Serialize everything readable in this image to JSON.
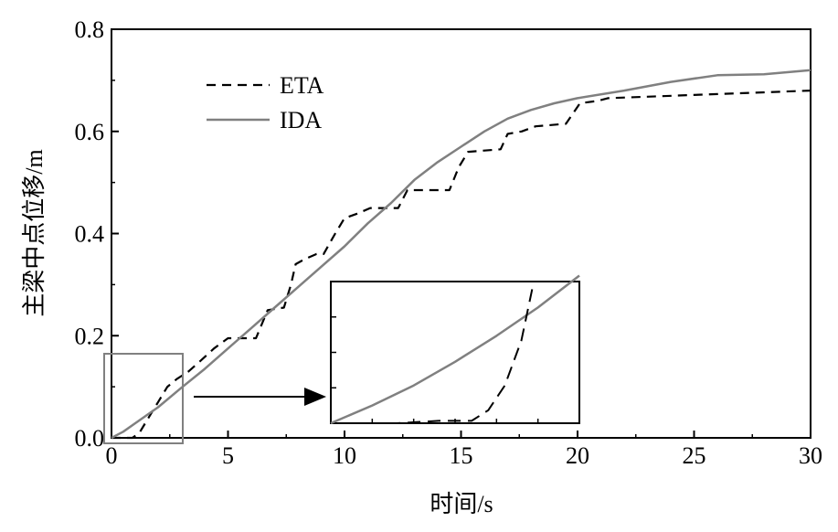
{
  "chart_data": {
    "type": "line",
    "xlabel": "时间/s",
    "ylabel": "主梁中点位移/m",
    "xlim": [
      0,
      30
    ],
    "ylim": [
      0,
      0.8
    ],
    "xticks": [
      "0",
      "5",
      "10",
      "15",
      "20",
      "25",
      "30"
    ],
    "yticks": [
      "0.0",
      "0.2",
      "0.4",
      "0.6",
      "0.8"
    ],
    "grid": false,
    "legend_position": "top-left",
    "series": [
      {
        "name": "ETA",
        "style": "dashed",
        "color": "#000000",
        "x": [
          0,
          0.9,
          1.2,
          1.6,
          2.0,
          2.4,
          2.8,
          3.3,
          3.8,
          4.4,
          5.0,
          5.6,
          6.2,
          6.7,
          7.4,
          7.7,
          7.9,
          8.3,
          8.8,
          9.1,
          9.6,
          10.0,
          10.6,
          11.1,
          12.3,
          12.7,
          14.5,
          14.9,
          15.3,
          16.7,
          17.0,
          17.6,
          18.2,
          19.5,
          20.1,
          20.9,
          21.3,
          30.0
        ],
        "y": [
          0.0,
          0.0,
          0.01,
          0.04,
          0.07,
          0.1,
          0.115,
          0.13,
          0.15,
          0.175,
          0.195,
          0.195,
          0.195,
          0.25,
          0.255,
          0.3,
          0.34,
          0.35,
          0.36,
          0.36,
          0.4,
          0.43,
          0.44,
          0.45,
          0.45,
          0.485,
          0.485,
          0.53,
          0.56,
          0.565,
          0.595,
          0.6,
          0.61,
          0.615,
          0.655,
          0.66,
          0.665,
          0.68
        ]
      },
      {
        "name": "IDA",
        "style": "solid",
        "color": "#808080",
        "x": [
          0,
          0.5,
          1,
          2,
          3,
          4,
          5,
          6,
          7,
          8,
          9,
          10,
          11,
          12,
          13,
          14,
          15,
          16,
          17,
          18,
          19,
          20,
          22,
          24,
          26,
          28,
          30
        ],
        "y": [
          0.0,
          0.012,
          0.028,
          0.06,
          0.098,
          0.135,
          0.175,
          0.215,
          0.255,
          0.295,
          0.335,
          0.375,
          0.42,
          0.46,
          0.505,
          0.54,
          0.57,
          0.6,
          0.625,
          0.642,
          0.655,
          0.665,
          0.68,
          0.697,
          0.71,
          0.712,
          0.72
        ]
      }
    ],
    "inset": {
      "zoom_region": {
        "x": [
          -0.3,
          3.0
        ],
        "y": [
          -0.012,
          0.165
        ]
      },
      "x_range": [
        0,
        3
      ],
      "y_range": [
        0,
        0.12
      ],
      "series": [
        {
          "name": "IDA",
          "x": [
            0,
            0.5,
            1.0,
            1.5,
            2.0,
            2.5,
            3.0
          ],
          "y": [
            0.0,
            0.015,
            0.032,
            0.052,
            0.074,
            0.098,
            0.125
          ]
        },
        {
          "name": "ETA",
          "x": [
            0.2,
            0.8,
            1.3,
            1.5,
            1.7,
            1.9,
            2.1,
            2.3,
            2.45
          ],
          "y": [
            0.0,
            0.0,
            0.002,
            0.002,
            0.002,
            0.011,
            0.032,
            0.07,
            0.12
          ]
        }
      ]
    }
  }
}
